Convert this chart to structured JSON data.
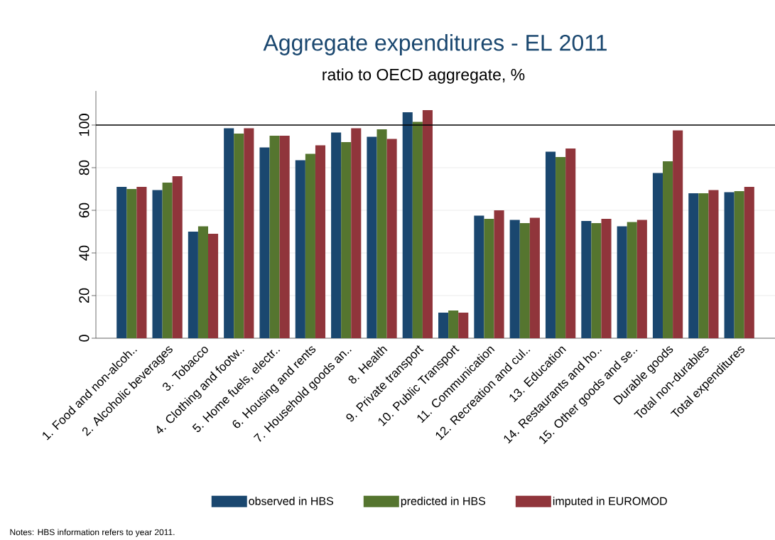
{
  "chart_data": {
    "type": "bar",
    "title": "Aggregate expenditures - EL 2011",
    "subtitle": "ratio to OECD aggregate, %",
    "categories": [
      "1. Food and non-alcoh..",
      "2. Alcoholic beverages",
      "3. Tobacco",
      "4. Clothing and footw..",
      "5. Home fuels, electr..",
      "6. Housing and rents",
      "7. Household goods an..",
      "8. Health",
      "9. Private transport",
      "10. Public Transport",
      "11. Communication",
      "12. Recreation and cul..",
      "13. Education",
      "14. Restaurants and ho..",
      "15. Other goods and se..",
      "Durable goods",
      "Total non-durables",
      "Total expenditures"
    ],
    "series": [
      {
        "name": "observed in HBS",
        "color": "#1a476f",
        "values": [
          71,
          69.5,
          50,
          98.5,
          89.5,
          83.5,
          96.5,
          94.5,
          106,
          12,
          57.5,
          55.5,
          87.5,
          55,
          52.5,
          77.5,
          68,
          68.5
        ]
      },
      {
        "name": "predicted in HBS",
        "color": "#55752f",
        "values": [
          70,
          73,
          52.5,
          96,
          95,
          86.5,
          92,
          98,
          101.5,
          13,
          56,
          54,
          85,
          54,
          54.5,
          83,
          68,
          69
        ]
      },
      {
        "name": "imputed in EUROMOD",
        "color": "#90353b",
        "values": [
          71,
          76,
          49,
          98.5,
          95,
          90.5,
          98.5,
          93.5,
          107,
          12,
          60,
          56.5,
          89,
          56,
          55.5,
          97.5,
          69.5,
          71
        ]
      }
    ],
    "ylim": [
      0,
      116
    ],
    "yticks": [
      0,
      20,
      40,
      60,
      80,
      100
    ],
    "grid": "y",
    "legend": "bottom",
    "ref_lines": [
      {
        "axis": "y",
        "value": 100,
        "color": "#000000"
      }
    ],
    "annotations": [
      "Notes: HBS information refers to year 2011."
    ]
  }
}
